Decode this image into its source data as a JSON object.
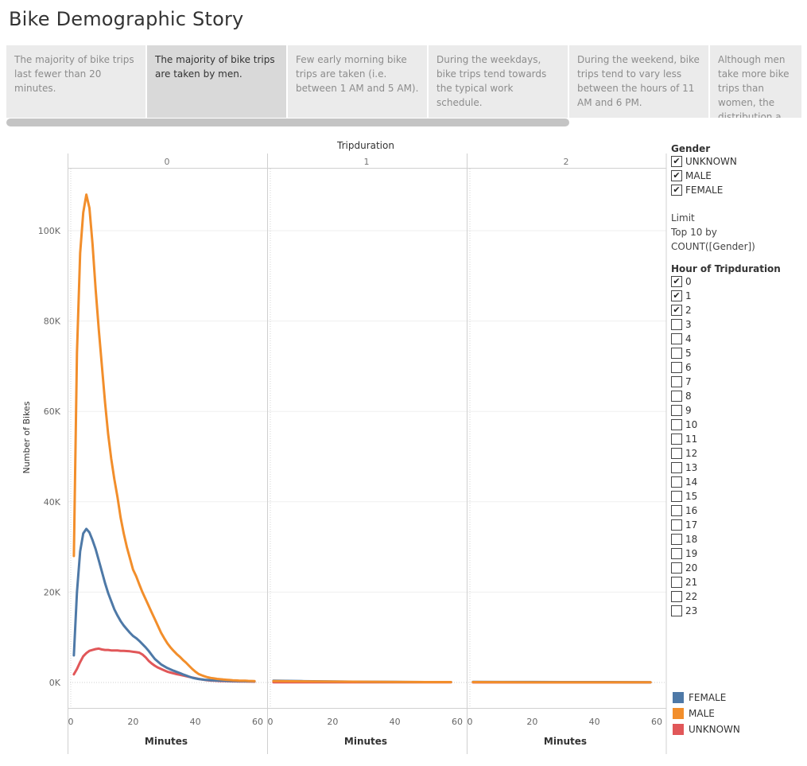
{
  "title": "Bike Demographic Story",
  "story_points": [
    {
      "text": "The majority of bike trips last fewer than 20 minutes.",
      "active": false
    },
    {
      "text": "The majority of bike trips are taken by men.",
      "active": true
    },
    {
      "text": "Few early morning bike trips are taken (i.e. between 1 AM and 5 AM).",
      "active": false
    },
    {
      "text": "During the weekdays, bike trips tend towards the typical work schedule.",
      "active": false
    },
    {
      "text": "During the weekend, bike trips tend to vary less between the hours of 11 AM and 6 PM.",
      "active": false
    },
    {
      "text": "Although men take more bike trips than women, the distribution a..",
      "active": false
    }
  ],
  "filters": {
    "gender_title": "Gender",
    "gender_items": [
      {
        "label": "UNKNOWN",
        "checked": true
      },
      {
        "label": "MALE",
        "checked": true
      },
      {
        "label": "FEMALE",
        "checked": true
      }
    ],
    "limit_lines": [
      "Limit",
      "Top 10 by",
      "COUNT([Gender])"
    ],
    "hour_title": "Hour of Tripduration",
    "hour_items": [
      {
        "label": "0",
        "checked": true
      },
      {
        "label": "1",
        "checked": true
      },
      {
        "label": "2",
        "checked": true
      },
      {
        "label": "3",
        "checked": false
      },
      {
        "label": "4",
        "checked": false
      },
      {
        "label": "5",
        "checked": false
      },
      {
        "label": "6",
        "checked": false
      },
      {
        "label": "7",
        "checked": false
      },
      {
        "label": "8",
        "checked": false
      },
      {
        "label": "9",
        "checked": false
      },
      {
        "label": "10",
        "checked": false
      },
      {
        "label": "11",
        "checked": false
      },
      {
        "label": "12",
        "checked": false
      },
      {
        "label": "13",
        "checked": false
      },
      {
        "label": "14",
        "checked": false
      },
      {
        "label": "15",
        "checked": false
      },
      {
        "label": "16",
        "checked": false
      },
      {
        "label": "17",
        "checked": false
      },
      {
        "label": "18",
        "checked": false
      },
      {
        "label": "19",
        "checked": false
      },
      {
        "label": "20",
        "checked": false
      },
      {
        "label": "21",
        "checked": false
      },
      {
        "label": "22",
        "checked": false
      },
      {
        "label": "23",
        "checked": false
      }
    ]
  },
  "check_glyph": "✔",
  "chart_data": {
    "type": "line",
    "title": "Tripduration",
    "panels": [
      "0",
      "1",
      "2"
    ],
    "xlabel": "Minutes",
    "ylabel": "Number of Bikes",
    "xlim": [
      0,
      60
    ],
    "xticks": [
      0,
      20,
      40,
      60
    ],
    "ylim": [
      0,
      110000
    ],
    "yticks": [
      0,
      20000,
      40000,
      60000,
      80000,
      100000
    ],
    "ytick_labels": [
      "0K",
      "20K",
      "40K",
      "60K",
      "80K",
      "100K"
    ],
    "grid": true,
    "legend_position": "bottom-right",
    "series": [
      {
        "name": "FEMALE",
        "color": "#4e79a7",
        "panels": [
          {
            "x": [
              1,
              2,
              3,
              4,
              5,
              6,
              7,
              8,
              9,
              10,
              11,
              12,
              13,
              14,
              15,
              16,
              17,
              18,
              19,
              20,
              21,
              22,
              23,
              24,
              25,
              26,
              27,
              28,
              29,
              30,
              31,
              32,
              33,
              34,
              35,
              36,
              37,
              38,
              39,
              40,
              41,
              42,
              43,
              44,
              45,
              46,
              47,
              48,
              49,
              50,
              51,
              52,
              53,
              54,
              55,
              56,
              57,
              58,
              59
            ],
            "y": [
              6000,
              20000,
              29000,
              33000,
              34000,
              33200,
              31500,
              29500,
              27000,
              24500,
              22000,
              19800,
              18000,
              16200,
              14800,
              13600,
              12600,
              11800,
              11000,
              10300,
              9800,
              9200,
              8500,
              7800,
              7000,
              6100,
              5200,
              4600,
              4000,
              3600,
              3200,
              2900,
              2600,
              2350,
              2100,
              1800,
              1550,
              1300,
              1050,
              900,
              780,
              680,
              600,
              540,
              490,
              450,
              420,
              400,
              380,
              360,
              340,
              320,
              300,
              290,
              280,
              270,
              260,
              250,
              240
            ]
          },
          {
            "x": [
              1,
              5,
              10,
              20,
              30,
              40,
              50,
              58
            ],
            "y": [
              400,
              360,
              300,
              220,
              160,
              120,
              90,
              80
            ]
          },
          {
            "x": [
              1,
              10,
              20,
              30,
              40,
              50,
              58
            ],
            "y": [
              120,
              110,
              100,
              90,
              80,
              70,
              60
            ]
          }
        ]
      },
      {
        "name": "MALE",
        "color": "#f28e2b",
        "panels": [
          {
            "x": [
              1,
              2,
              3,
              4,
              5,
              6,
              7,
              8,
              9,
              10,
              11,
              12,
              13,
              14,
              15,
              16,
              17,
              18,
              19,
              20,
              21,
              22,
              23,
              24,
              25,
              26,
              27,
              28,
              29,
              30,
              31,
              32,
              33,
              34,
              35,
              36,
              37,
              38,
              39,
              40,
              41,
              42,
              43,
              44,
              45,
              46,
              47,
              48,
              49,
              50,
              51,
              52,
              53,
              54,
              55,
              56,
              57,
              58,
              59
            ],
            "y": [
              28000,
              73000,
              95000,
              104000,
              108000,
              105000,
              97000,
              87000,
              78000,
              70000,
              62000,
              55000,
              49500,
              45000,
              41000,
              36500,
              33000,
              30000,
              27500,
              25000,
              23500,
              21700,
              20000,
              18500,
              17000,
              15500,
              14000,
              12500,
              11000,
              9800,
              8700,
              7800,
              7000,
              6300,
              5700,
              5000,
              4400,
              3700,
              3000,
              2400,
              1900,
              1600,
              1350,
              1150,
              1000,
              900,
              800,
              720,
              650,
              590,
              540,
              500,
              460,
              430,
              400,
              380,
              360,
              340,
              320
            ]
          },
          {
            "x": [
              1,
              10,
              20,
              30,
              40,
              50,
              58
            ],
            "y": [
              300,
              250,
              200,
              150,
              110,
              90,
              80
            ]
          },
          {
            "x": [
              1,
              10,
              20,
              30,
              40,
              50,
              58
            ],
            "y": [
              80,
              70,
              60,
              55,
              50,
              45,
              40
            ]
          }
        ]
      },
      {
        "name": "UNKNOWN",
        "color": "#e15759",
        "panels": [
          {
            "x": [
              1,
              2,
              3,
              4,
              5,
              6,
              7,
              8,
              9,
              10,
              11,
              12,
              13,
              14,
              15,
              16,
              17,
              18,
              19,
              20,
              21,
              22,
              23,
              24,
              25,
              26,
              27,
              28,
              29,
              30,
              31,
              32,
              33,
              34,
              35,
              36,
              37,
              38,
              39,
              40,
              41,
              42,
              43,
              44,
              45,
              46,
              47,
              48,
              49,
              50,
              51,
              52,
              53,
              54,
              55,
              56,
              57,
              58,
              59
            ],
            "y": [
              1800,
              3000,
              4500,
              5800,
              6500,
              7000,
              7200,
              7400,
              7500,
              7300,
              7200,
              7200,
              7100,
              7100,
              7100,
              7000,
              7000,
              6950,
              6900,
              6800,
              6700,
              6600,
              6200,
              5600,
              4800,
              4200,
              3700,
              3300,
              3000,
              2700,
              2400,
              2200,
              2000,
              1850,
              1700,
              1550,
              1400,
              1250,
              1100,
              950,
              800,
              680,
              580,
              500,
              430,
              380,
              350,
              320,
              300,
              280,
              260,
              250,
              240,
              230,
              220,
              210,
              200,
              190,
              180
            ]
          },
          {
            "x": [
              1,
              10,
              20,
              30,
              40,
              50,
              58
            ],
            "y": [
              60,
              55,
              50,
              45,
              40,
              35,
              30
            ]
          },
          {
            "x": [
              1,
              10,
              20,
              30,
              40,
              50,
              58
            ],
            "y": [
              20,
              18,
              16,
              15,
              14,
              13,
              12
            ]
          }
        ]
      }
    ]
  }
}
